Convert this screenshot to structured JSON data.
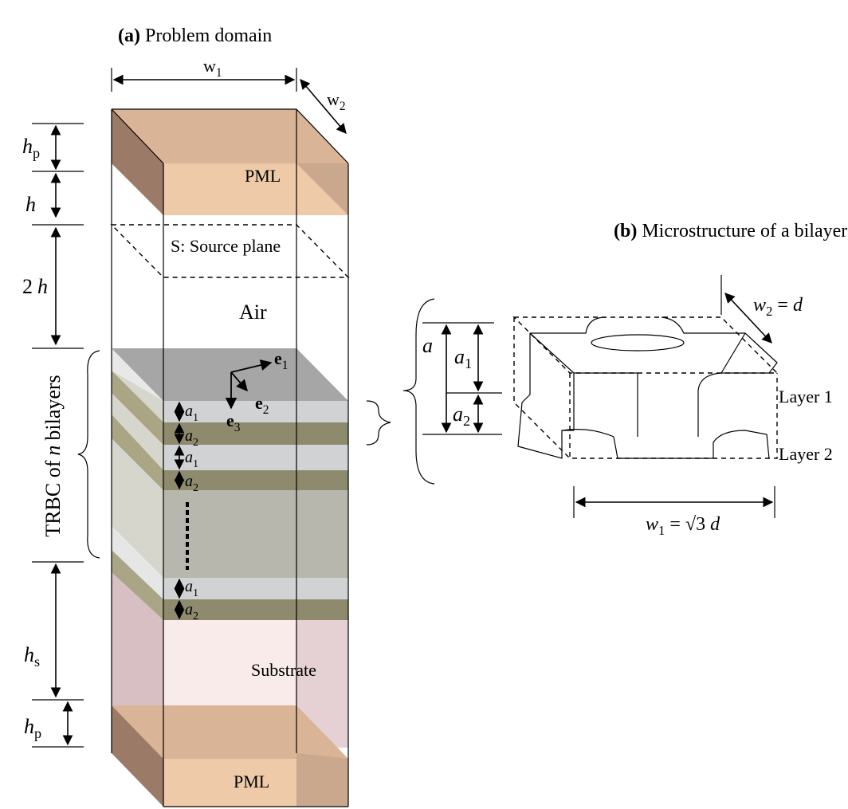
{
  "panel_a": {
    "title": {
      "tag": "(a)",
      "text": "Problem domain"
    },
    "w1": {
      "base": "w",
      "sub": "1"
    },
    "w2": {
      "base": "w",
      "sub": "2"
    },
    "hp_top": {
      "base": "h",
      "sub": "p"
    },
    "h": {
      "base": "h"
    },
    "two_h": {
      "coef": "2",
      "base": "h"
    },
    "pml_top": "PML",
    "source_plane": "S: Source plane",
    "air": "Air",
    "trbc": {
      "text": "TRBC of",
      "var": "n",
      "rest": "bilayers"
    },
    "e1": {
      "vec": "e",
      "sub": "1"
    },
    "e2": {
      "vec": "e",
      "sub": "2"
    },
    "e3": {
      "vec": "e",
      "sub": "3"
    },
    "layer_labels": [
      {
        "base": "a",
        "sub": "1"
      },
      {
        "base": "a",
        "sub": "2"
      },
      {
        "base": "a",
        "sub": "1"
      },
      {
        "base": "a",
        "sub": "2"
      },
      {
        "base": "a",
        "sub": "1"
      },
      {
        "base": "a",
        "sub": "2"
      }
    ],
    "hs": {
      "base": "h",
      "sub": "s"
    },
    "substrate": "Substrate",
    "hp_bottom": {
      "base": "h",
      "sub": "p"
    },
    "pml_bottom": "PML"
  },
  "panel_b": {
    "title": {
      "tag": "(b)",
      "text": "Microstructure of a bilayer"
    },
    "w2": {
      "base": "w",
      "sub": "2",
      "eq": "=",
      "var": "d"
    },
    "a": {
      "base": "a"
    },
    "a1": {
      "base": "a",
      "sub": "1"
    },
    "a2": {
      "base": "a",
      "sub": "2"
    },
    "layer1": "Layer 1",
    "layer2": "Layer 2",
    "w1": {
      "base": "w",
      "sub": "1",
      "eq": "= √3",
      "var": "d"
    }
  }
}
